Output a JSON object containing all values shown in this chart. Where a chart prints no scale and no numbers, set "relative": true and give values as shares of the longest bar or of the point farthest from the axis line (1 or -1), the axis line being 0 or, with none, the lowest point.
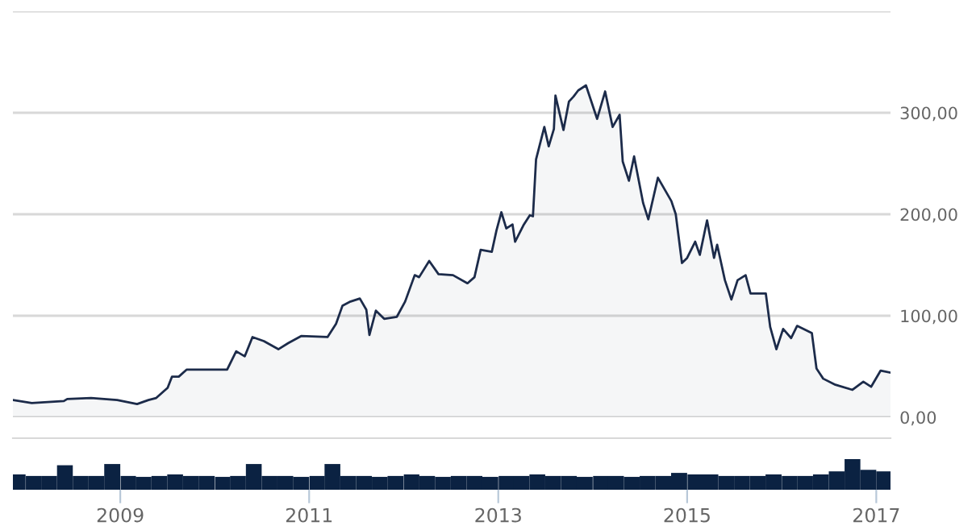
{
  "chart_data": [
    {
      "type": "area",
      "series": [
        {
          "color": "#1c2b4a",
          "x": [
            "2007-11-13",
            "2008-01-25",
            "2008-05-28",
            "2008-06-10",
            "2008-09-10",
            "2008-12-20",
            "2009-03-07",
            "2009-04-20",
            "2009-05-20",
            "2009-07-03",
            "2009-07-20",
            "2009-08-15",
            "2009-09-15",
            "2009-11-18",
            "2010-02-18",
            "2010-03-25",
            "2010-04-27",
            "2010-05-27",
            "2010-07-10",
            "2010-09-04",
            "2010-10-12",
            "2010-12-01",
            "2011-03-13",
            "2011-04-15",
            "2011-05-10",
            "2011-06-10",
            "2011-07-16",
            "2011-08-10",
            "2011-08-22",
            "2011-09-16",
            "2011-10-18",
            "2011-12-06",
            "2012-01-07",
            "2012-02-13",
            "2012-03-01",
            "2012-04-09",
            "2012-05-15",
            "2012-07-10",
            "2012-09-04",
            "2012-10-01",
            "2012-10-25",
            "2012-12-07",
            "2012-12-25",
            "2013-01-13",
            "2013-02-01",
            "2013-02-25",
            "2013-03-07",
            "2013-04-08",
            "2013-05-03",
            "2013-05-15",
            "2013-05-27",
            "2013-06-28",
            "2013-07-15",
            "2013-08-04",
            "2013-08-10",
            "2013-09-10",
            "2013-10-01",
            "2013-10-19",
            "2013-11-06",
            "2013-12-06",
            "2014-01-18",
            "2014-02-18",
            "2014-03-19",
            "2014-04-15",
            "2014-04-27",
            "2014-05-21",
            "2014-06-10",
            "2014-07-15",
            "2014-08-04",
            "2014-09-10",
            "2014-11-01",
            "2014-11-18",
            "2014-12-12",
            "2015-01-01",
            "2015-02-01",
            "2015-02-19",
            "2015-03-19",
            "2015-04-15",
            "2015-04-27",
            "2015-05-27",
            "2015-06-21",
            "2015-07-15",
            "2015-08-15",
            "2015-09-03",
            "2015-11-01",
            "2015-11-18",
            "2015-12-12",
            "2016-01-07",
            "2016-02-07",
            "2016-03-01",
            "2016-04-27",
            "2016-05-15",
            "2016-06-10",
            "2016-07-27",
            "2016-10-01",
            "2016-11-12",
            "2016-12-12",
            "2017-01-18",
            "2017-02-25"
          ],
          "values": [
            17,
            14,
            16,
            18,
            19,
            17,
            13,
            17,
            19,
            29,
            40,
            40,
            47,
            47,
            47,
            65,
            60,
            79,
            75,
            67,
            73,
            80,
            79,
            92,
            110,
            114,
            117,
            106,
            81,
            105,
            97,
            99,
            114,
            140,
            138,
            154,
            141,
            140,
            132,
            138,
            165,
            163,
            184,
            202,
            186,
            190,
            173,
            189,
            199,
            198,
            254,
            286,
            267,
            284,
            317,
            283,
            311,
            316,
            322,
            327,
            294,
            321,
            286,
            298,
            252,
            233,
            257,
            211,
            195,
            236,
            213,
            200,
            152,
            157,
            173,
            160,
            194,
            157,
            170,
            135,
            116,
            135,
            140,
            122,
            122,
            89,
            67,
            87,
            78,
            90,
            83,
            48,
            38,
            32,
            27,
            35,
            30,
            46,
            44
          ]
        }
      ],
      "xlim": [
        "2007-11-13",
        "2017-02-25"
      ],
      "ylim": [
        0,
        400
      ],
      "yticks": [
        {
          "value": 0,
          "label": "0,00"
        },
        {
          "value": 100,
          "label": "100,00"
        },
        {
          "value": 200,
          "label": "200,00"
        },
        {
          "value": 300,
          "label": "300,00"
        },
        {
          "value": 400,
          "label": null
        }
      ],
      "grid": "y",
      "tick_labels": "y"
    },
    {
      "type": "bar",
      "relative": true,
      "series": [
        {
          "color": "#0b2242",
          "x": [
            "2007-12-01",
            "2008-02-01",
            "2008-04-01",
            "2008-06-01",
            "2008-08-01",
            "2008-10-01",
            "2008-12-01",
            "2009-02-01",
            "2009-04-01",
            "2009-06-01",
            "2009-08-01",
            "2009-10-01",
            "2009-12-01",
            "2010-02-01",
            "2010-04-01",
            "2010-06-01",
            "2010-08-01",
            "2010-10-01",
            "2010-12-01",
            "2011-02-01",
            "2011-04-01",
            "2011-06-01",
            "2011-08-01",
            "2011-10-01",
            "2011-12-01",
            "2012-02-01",
            "2012-04-01",
            "2012-06-01",
            "2012-08-01",
            "2012-10-01",
            "2012-12-01",
            "2013-02-01",
            "2013-04-01",
            "2013-06-01",
            "2013-08-01",
            "2013-10-01",
            "2013-12-01",
            "2014-02-01",
            "2014-04-01",
            "2014-06-01",
            "2014-08-01",
            "2014-10-01",
            "2014-12-01",
            "2015-02-01",
            "2015-04-01",
            "2015-06-01",
            "2015-08-01",
            "2015-10-01",
            "2015-12-01",
            "2016-02-01",
            "2016-04-01",
            "2016-06-01",
            "2016-08-01",
            "2016-10-01",
            "2016-12-01",
            "2017-02-01"
          ],
          "values": [
            0.5,
            0.45,
            0.45,
            0.8,
            0.45,
            0.45,
            0.84,
            0.45,
            0.42,
            0.45,
            0.5,
            0.45,
            0.45,
            0.42,
            0.45,
            0.84,
            0.45,
            0.45,
            0.42,
            0.45,
            0.84,
            0.45,
            0.45,
            0.42,
            0.45,
            0.5,
            0.45,
            0.42,
            0.45,
            0.45,
            0.42,
            0.45,
            0.45,
            0.5,
            0.45,
            0.45,
            0.42,
            0.45,
            0.45,
            0.42,
            0.45,
            0.45,
            0.55,
            0.5,
            0.5,
            0.45,
            0.45,
            0.45,
            0.5,
            0.45,
            0.45,
            0.5,
            0.6,
            1.0,
            0.65,
            0.6
          ]
        }
      ],
      "xlim": [
        "2007-11-13",
        "2017-02-25"
      ],
      "xticks": [
        {
          "value": "2009-01-01",
          "label": "2009"
        },
        {
          "value": "2011-01-01",
          "label": "2011"
        },
        {
          "value": "2013-01-01",
          "label": "2013"
        },
        {
          "value": "2015-01-01",
          "label": "2015"
        },
        {
          "value": "2017-01-01",
          "label": "2017"
        }
      ],
      "tick_labels": "x"
    }
  ]
}
